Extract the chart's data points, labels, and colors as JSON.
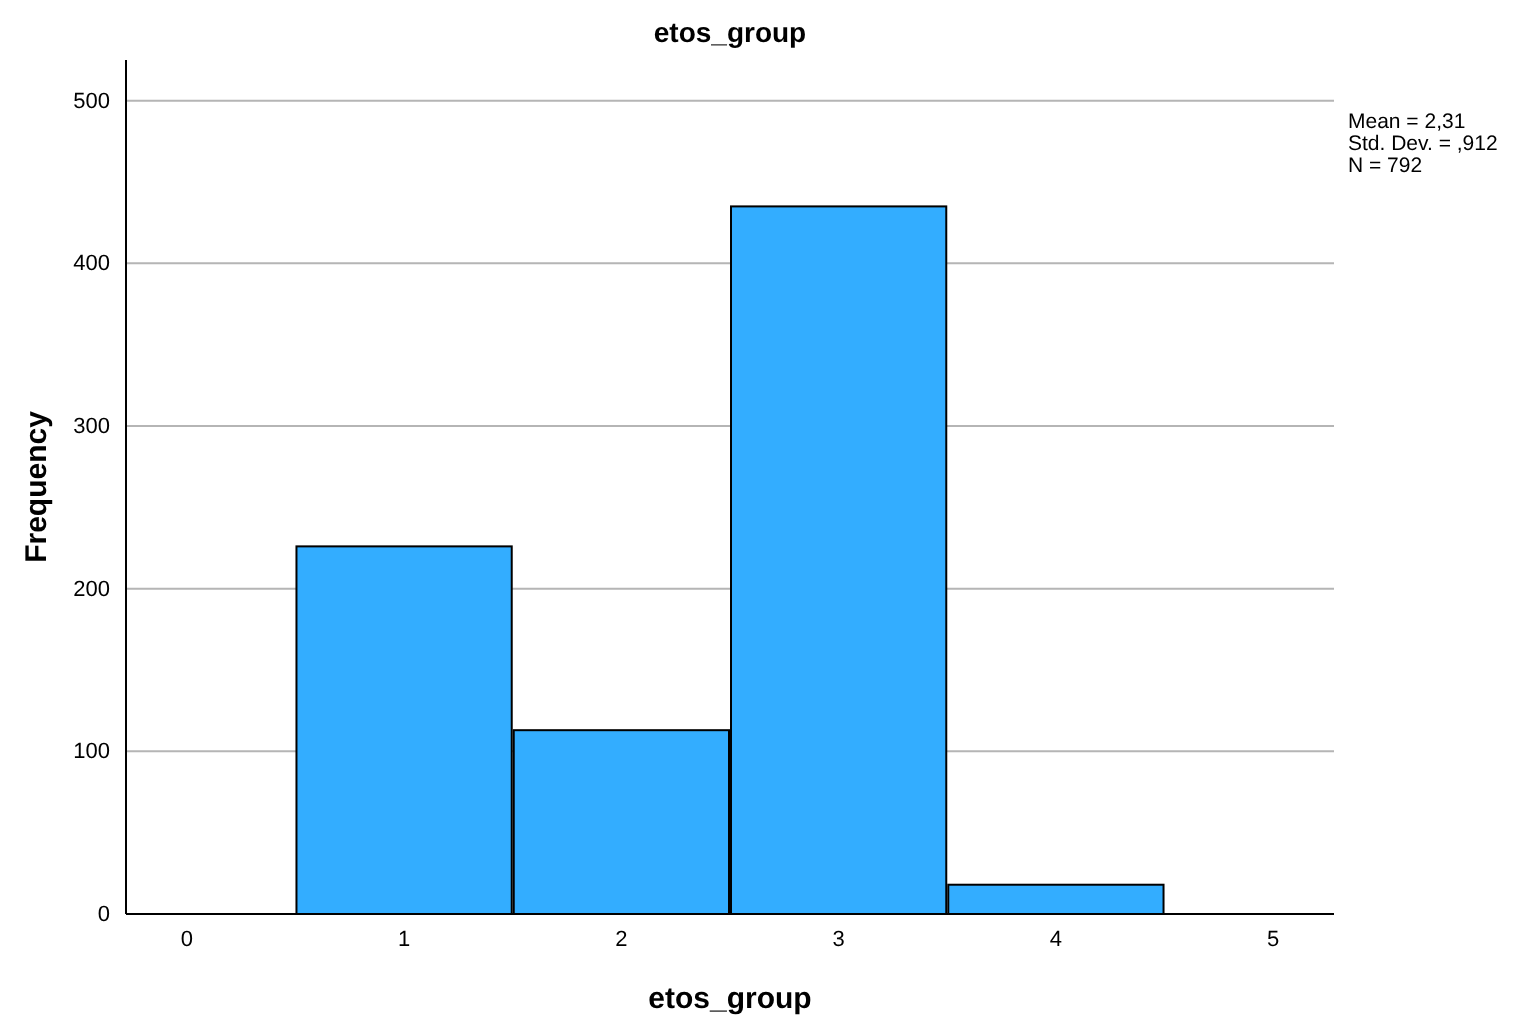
{
  "chart_data": {
    "type": "histogram",
    "title": "etos_group",
    "xlabel": "etos_group",
    "ylabel": "Frequency",
    "bins": [
      0.5,
      1.5,
      2.5,
      3.5,
      4.5
    ],
    "values": [
      226,
      113,
      435,
      18
    ],
    "color": "#33adff",
    "xlim": [
      -0.28,
      5.28
    ],
    "xticks": [
      0,
      1,
      2,
      3,
      4,
      5
    ],
    "ylim": [
      0,
      525
    ],
    "yticks": [
      0,
      100,
      200,
      300,
      400,
      500
    ],
    "grid": "y",
    "annotations": [
      "Mean = 2,31",
      "Std. Dev. = ,912",
      "N = 792"
    ]
  }
}
